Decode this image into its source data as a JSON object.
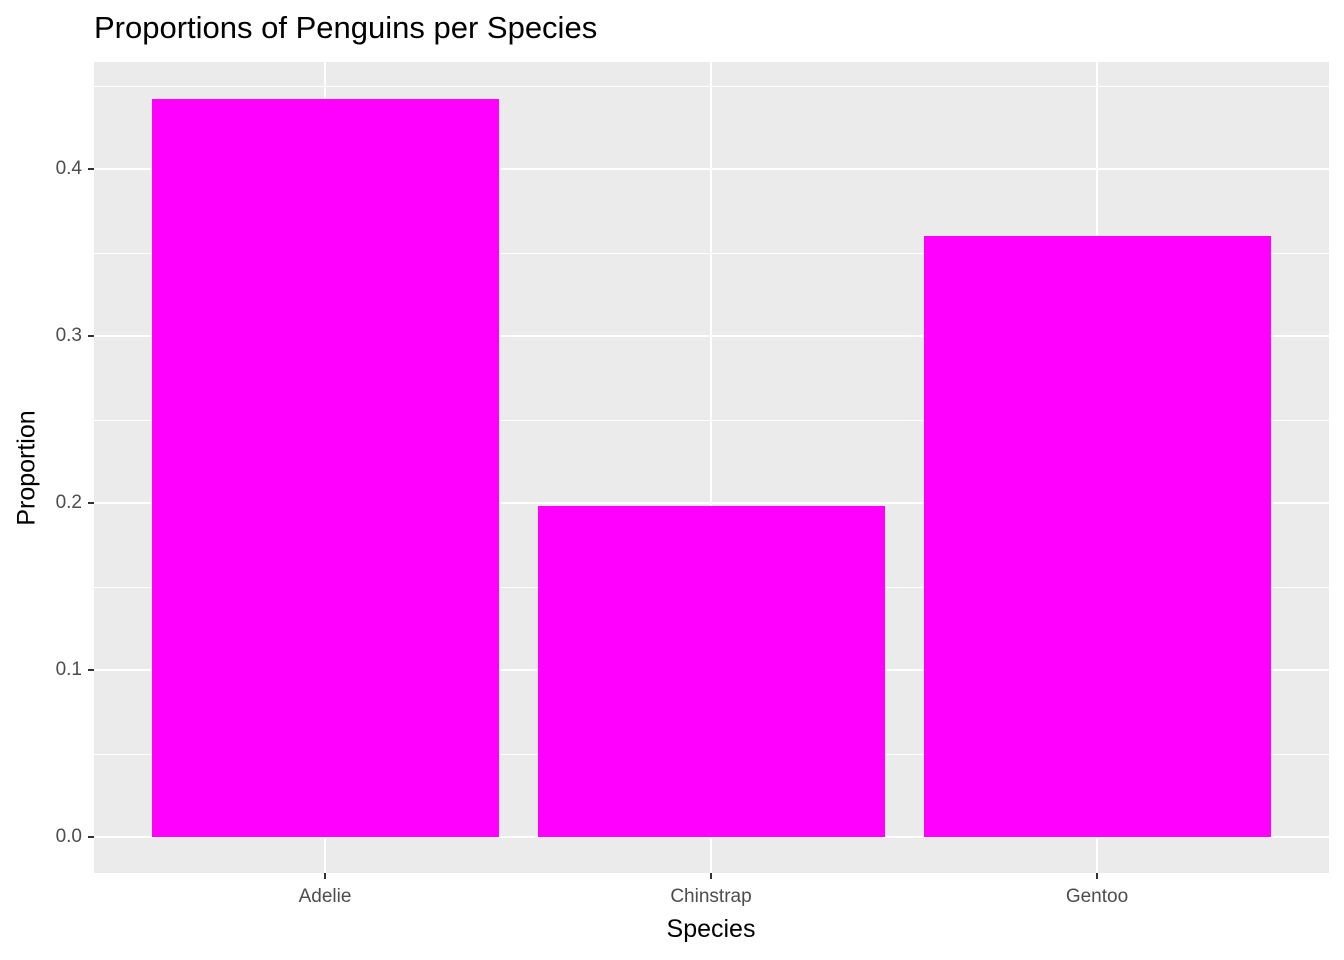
{
  "chart_data": {
    "type": "bar",
    "title": "Proportions of Penguins per Species",
    "xlabel": "Species",
    "ylabel": "Proportion",
    "categories": [
      "Adelie",
      "Chinstrap",
      "Gentoo"
    ],
    "values": [
      0.442,
      0.198,
      0.36
    ],
    "ylim": [
      -0.022,
      0.464
    ],
    "yticks": [
      "0.0",
      "0.1",
      "0.2",
      "0.3",
      "0.4"
    ],
    "ytick_values": [
      0.0,
      0.1,
      0.2,
      0.3,
      0.4
    ],
    "bar_color": "#FF00FF",
    "panel_background": "#EBEBEB",
    "grid": true,
    "legend": "none"
  }
}
